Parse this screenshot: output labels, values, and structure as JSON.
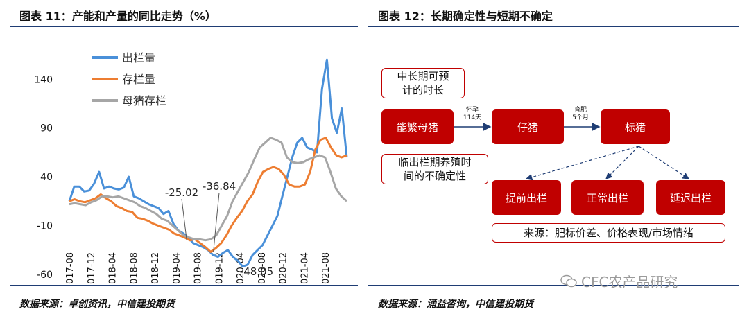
{
  "left_panel": {
    "title": "图表 11：产能和产量的同比走势（%）",
    "source": "数据来源：卓创资讯，中信建投期货"
  },
  "right_panel": {
    "title": "图表 12：长期确定性与短期不确定",
    "source": "数据来源：涌益咨询，中信建投期货",
    "boxes": {
      "predictable": "中长期可预\n计的时长",
      "sow": "能繁母猪",
      "piglet": "仔猪",
      "hog": "标猪",
      "uncertain": "临出栏期养殖时\n间的不确定性",
      "early": "提前出栏",
      "normal": "正常出栏",
      "delayed": "延迟出栏",
      "source_note": "来源：肥标价差、价格表现/市场情绪"
    },
    "arrow_labels": {
      "pregnancy": "怀孕\n114天",
      "fattening": "育肥\n5个月"
    }
  },
  "watermark": "CFC农产品研究",
  "colors": {
    "outflow": "#4a90d9",
    "inventory": "#ed7d31",
    "sow": "#a6a6a6",
    "box_red": "#c00000",
    "rule_blue": "#1f3d74"
  },
  "chart_data": {
    "type": "line",
    "x_start": "2017-08",
    "x_end": "2021-12",
    "x_ticks": [
      "2017-08",
      "2017-12",
      "2018-04",
      "2018-08",
      "2018-12",
      "2019-04",
      "2019-08",
      "2019-12",
      "2020-04",
      "2020-08",
      "2020-12",
      "2021-04",
      "2021-08"
    ],
    "ylim": [
      -60,
      170
    ],
    "y_ticks": [
      140,
      90,
      40,
      -10,
      -60
    ],
    "series": [
      {
        "name": "出栏量",
        "color_key": "outflow",
        "values": [
          15,
          30,
          30,
          25,
          26,
          33,
          45,
          28,
          30,
          28,
          27,
          29,
          40,
          20,
          18,
          15,
          12,
          10,
          8,
          2,
          5,
          -8,
          -15,
          -18,
          -22,
          -28,
          -30,
          -32,
          -35,
          -40,
          -42,
          -38,
          -35,
          -42,
          -46,
          -52,
          -50,
          -40,
          -35,
          -30,
          -20,
          -10,
          0,
          20,
          40,
          60,
          75,
          80,
          70,
          68,
          65,
          130,
          160,
          100,
          85,
          110,
          60
        ]
      },
      {
        "name": "存栏量",
        "color_key": "inventory",
        "values": [
          15,
          17,
          15,
          14,
          16,
          18,
          22,
          18,
          15,
          10,
          8,
          5,
          4,
          -2,
          -3,
          -5,
          -8,
          -10,
          -12,
          -14,
          -18,
          -20,
          -22,
          -25.02,
          -24,
          -28,
          -32,
          -36.84,
          -33,
          -28,
          -20,
          -10,
          -2,
          5,
          15,
          22,
          35,
          45,
          48,
          50,
          48,
          42,
          32,
          30,
          30,
          32,
          45,
          68,
          78,
          80,
          70,
          62,
          60,
          62
        ]
      },
      {
        "name": "母猪存栏",
        "color_key": "sow",
        "values": [
          12,
          13,
          12,
          11,
          14,
          16,
          20,
          20,
          19,
          20,
          18,
          16,
          14,
          10,
          8,
          5,
          2,
          -3,
          -5,
          -10,
          -15,
          -20,
          -22,
          -24,
          -24,
          -25,
          -24,
          -20,
          -10,
          0,
          15,
          25,
          35,
          45,
          58,
          70,
          75,
          80,
          78,
          75,
          60,
          55,
          54,
          55,
          58,
          60,
          62,
          60,
          45,
          28,
          20,
          15
        ]
      }
    ],
    "annotations": [
      {
        "text": "-25.02",
        "series": "存栏量",
        "value": -25.02,
        "x": "2019-06"
      },
      {
        "text": "-36.84",
        "series": "存栏量",
        "value": -36.84,
        "x": "2019-11"
      },
      {
        "text": "-48.05",
        "series": "出栏量",
        "value": -48.05,
        "x": "2020-05"
      }
    ],
    "legend_placement": "top-left",
    "grid": false
  }
}
